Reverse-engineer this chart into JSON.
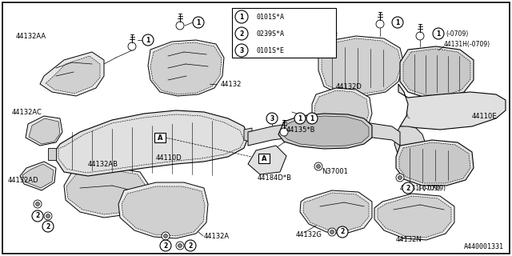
{
  "bg_color": "#ffffff",
  "line_color": "#000000",
  "footer_text": "A440001331",
  "legend_items": [
    {
      "symbol": "1",
      "code": "0101S*A"
    },
    {
      "symbol": "2",
      "code": "0239S*A"
    },
    {
      "symbol": "3",
      "code": "0101S*E"
    }
  ]
}
